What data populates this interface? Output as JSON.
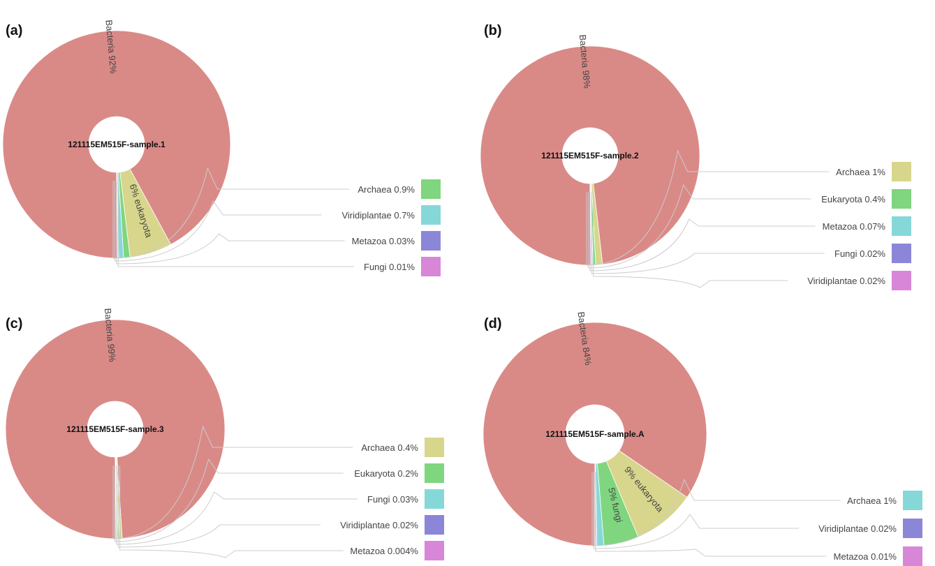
{
  "chart_data": [
    {
      "type": "pie",
      "panel": "(a)",
      "center_label": "121115EM515F-sample.1",
      "slices": [
        {
          "name": "Bacteria",
          "value": 92,
          "label": "92%",
          "color": "#d98a87"
        },
        {
          "name": "eukaryota",
          "value": 6,
          "label": "6%",
          "color": "#d8d68c"
        },
        {
          "name": "Archaea",
          "value": 0.9,
          "label": "0.9%",
          "color": "#7fd67f"
        },
        {
          "name": "Viridiplantae",
          "value": 0.7,
          "label": "0.7%",
          "color": "#86d8d8"
        },
        {
          "name": "Metazoa",
          "value": 0.03,
          "label": "0.03%",
          "color": "#8c86d8"
        },
        {
          "name": "Fungi",
          "value": 0.01,
          "label": "0.01%",
          "color": "#d886d8"
        }
      ],
      "legend": [
        "Archaea",
        "Viridiplantae",
        "Metazoa",
        "Fungi"
      ]
    },
    {
      "type": "pie",
      "panel": "(b)",
      "center_label": "121115EM515F-sample.2",
      "slices": [
        {
          "name": "Bacteria",
          "value": 98,
          "label": "98%",
          "color": "#d98a87"
        },
        {
          "name": "Archaea",
          "value": 1,
          "label": "1%",
          "color": "#d8d68c"
        },
        {
          "name": "Eukaryota",
          "value": 0.4,
          "label": "0.4%",
          "color": "#7fd67f"
        },
        {
          "name": "Metazoa",
          "value": 0.07,
          "label": "0.07%",
          "color": "#86d8d8"
        },
        {
          "name": "Fungi",
          "value": 0.02,
          "label": "0.02%",
          "color": "#8c86d8"
        },
        {
          "name": "Viridiplantae",
          "value": 0.02,
          "label": "0.02%",
          "color": "#d886d8"
        }
      ],
      "legend": [
        "Archaea",
        "Eukaryota",
        "Metazoa",
        "Fungi",
        "Viridiplantae"
      ]
    },
    {
      "type": "pie",
      "panel": "(c)",
      "center_label": "121115EM515F-sample.3",
      "slices": [
        {
          "name": "Bacteria",
          "value": 99,
          "label": "99%",
          "color": "#d98a87"
        },
        {
          "name": "Archaea",
          "value": 0.4,
          "label": "0.4%",
          "color": "#d8d68c"
        },
        {
          "name": "Eukaryota",
          "value": 0.2,
          "label": "0.2%",
          "color": "#7fd67f"
        },
        {
          "name": "Fungi",
          "value": 0.03,
          "label": "0.03%",
          "color": "#86d8d8"
        },
        {
          "name": "Viridiplantae",
          "value": 0.02,
          "label": "0.02%",
          "color": "#8c86d8"
        },
        {
          "name": "Metazoa",
          "value": 0.004,
          "label": "0.004%",
          "color": "#d886d8"
        }
      ],
      "legend": [
        "Archaea",
        "Eukaryota",
        "Fungi",
        "Viridiplantae",
        "Metazoa"
      ]
    },
    {
      "type": "pie",
      "panel": "(d)",
      "center_label": "121115EM515F-sample.A",
      "slices": [
        {
          "name": "Bacteria",
          "value": 84,
          "label": "84%",
          "color": "#d98a87"
        },
        {
          "name": "eukaryota",
          "value": 9,
          "label": "9%",
          "color": "#d8d68c"
        },
        {
          "name": "fungi",
          "value": 5,
          "label": "5%",
          "color": "#7fd67f"
        },
        {
          "name": "Archaea",
          "value": 1,
          "label": "1%",
          "color": "#86d8d8"
        },
        {
          "name": "Viridiplantae",
          "value": 0.02,
          "label": "0.02%",
          "color": "#8c86d8"
        },
        {
          "name": "Metazoa",
          "value": 0.01,
          "label": "0.01%",
          "color": "#d886d8"
        }
      ],
      "legend": [
        "Archaea",
        "Viridiplantae",
        "Metazoa"
      ]
    }
  ]
}
